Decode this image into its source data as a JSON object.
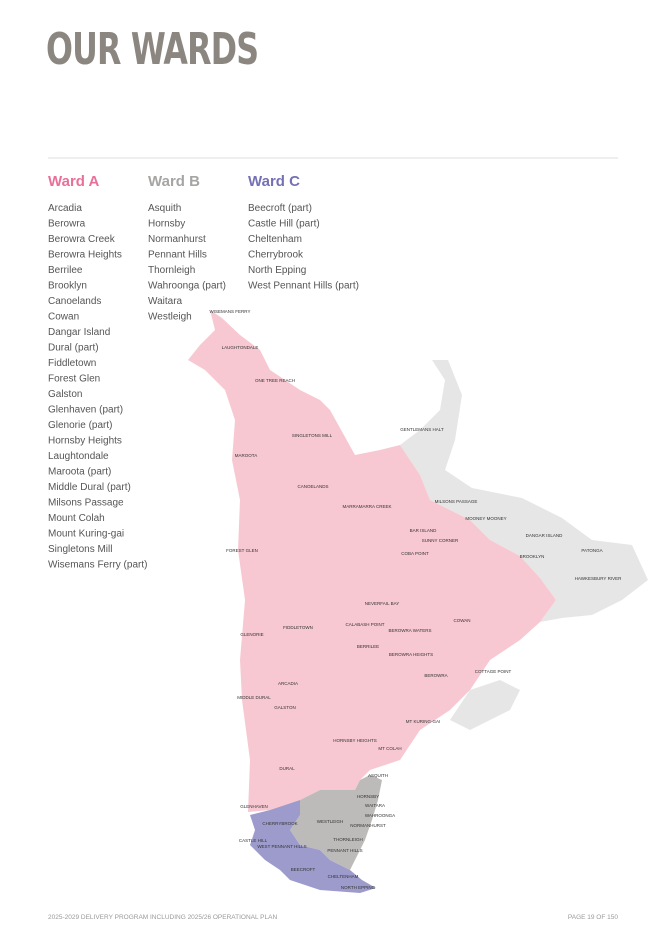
{
  "header": {
    "title": "OUR WARDS"
  },
  "wards": [
    {
      "name": "Ward A",
      "color": "#e9709a",
      "suburbs": [
        "Arcadia",
        "Berowra",
        "Berowra Creek",
        "Berowra Heights",
        "Berrilee",
        "Brooklyn",
        "Canoelands",
        "Cowan",
        "Dangar Island",
        "Dural (part)",
        "Fiddletown",
        "Forest Glen",
        "Galston",
        "Glenhaven (part)",
        "Glenorie (part)",
        "Hornsby Heights",
        "Laughtondale",
        "Maroota (part)",
        "Middle Dural (part)",
        "Milsons Passage",
        "Mount Colah",
        "Mount Kuring-gai",
        "Singletons Mill",
        "Wisemans Ferry (part)"
      ]
    },
    {
      "name": "Ward B",
      "color": "#a7a5a3",
      "suburbs": [
        "Asquith",
        "Hornsby",
        "Normanhurst",
        "Pennant Hills",
        "Thornleigh",
        "Wahroonga (part)",
        "Waitara",
        "Westleigh"
      ]
    },
    {
      "name": "Ward C",
      "color": "#7571b5",
      "suburbs": [
        "Beecroft (part)",
        "Castle Hill (part)",
        "Cheltenham",
        "Cherrybrook",
        "North Epping",
        "West Pennant Hills (part)"
      ]
    }
  ],
  "map": {
    "labels": [
      "WISEMANS FERRY",
      "LAUGHTONDALE",
      "ONE TREE REACH",
      "SINGLETONS MILL",
      "GENTLEMANS HALT",
      "MAROOTA",
      "CANOELANDS",
      "MILSONS PASSAGE",
      "MARRAMARRA CREEK",
      "MOONEY MOONEY",
      "DANGAR ISLAND",
      "BAR ISLAND",
      "SUNNY CORNER",
      "FOREST GLEN",
      "COBA POINT",
      "BROOKLYN",
      "PATONGA",
      "HAWKESBURY RIVER",
      "NEVERFAIL BAY",
      "FIDDLETOWN",
      "CALABASH POINT",
      "BEROWRA WATERS",
      "COWAN",
      "GLENORIE",
      "BERRILEE",
      "BEROWRA HEIGHTS",
      "COTTAGE POINT",
      "ARCADIA",
      "BEROWRA",
      "MIDDLE DURAL",
      "GALSTON",
      "MT KURING-GAI",
      "HORNSBY HEIGHTS",
      "MT COLAH",
      "DURAL",
      "ASQUITH",
      "GLENHAVEN",
      "HORNSBY",
      "WAITARA",
      "WAHROONGA",
      "WESTLEIGH",
      "NORMANHURST",
      "CHERRYBROOK",
      "CASTLE HILL",
      "THORNLEIGH",
      "WEST PENNANT HILLS",
      "PENNANT HILLS",
      "BEECROFT",
      "CHELTENHAM",
      "NORTH EPPING"
    ]
  },
  "footer": {
    "left": "2025-2029 DELIVERY PROGRAM INCLUDING 2025/26 OPERATIONAL PLAN",
    "right": "PAGE 19 OF 150"
  }
}
